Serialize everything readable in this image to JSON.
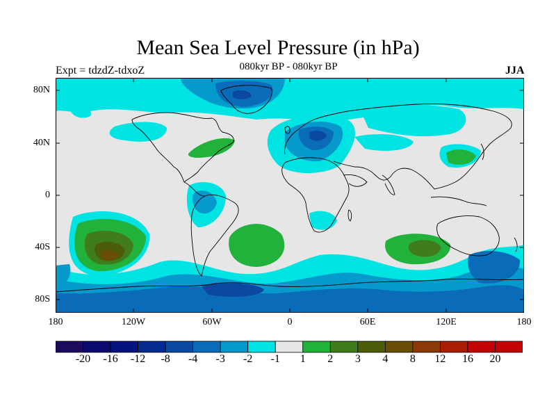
{
  "title": "Mean Sea Level Pressure (in hPa)",
  "subtitle": "080kyr BP - 080kyr BP",
  "left_label": "Expt = tdzdZ-tdxoZ",
  "right_label": "JJA",
  "lat_labels": [
    "80N",
    "40N",
    "0",
    "40S",
    "80S"
  ],
  "lon_labels": [
    "180",
    "120W",
    "60W",
    "0",
    "60E",
    "120E",
    "180"
  ],
  "colorbar": {
    "labels": [
      "-20",
      "-16",
      "-12",
      "-8",
      "-4",
      "-3",
      "-2",
      "-1",
      "1",
      "2",
      "3",
      "4",
      "8",
      "12",
      "16",
      "20"
    ],
    "colors": [
      "#1c0a5c",
      "#0b0b6e",
      "#06127f",
      "#052a8f",
      "#0a48a2",
      "#0a6cb8",
      "#0599cc",
      "#00e3e3",
      "#e6e6e6",
      "#22b23c",
      "#3f7d1c",
      "#4c5d0a",
      "#6b4e05",
      "#8a3a08",
      "#a91d05",
      "#c40404"
    ]
  }
}
